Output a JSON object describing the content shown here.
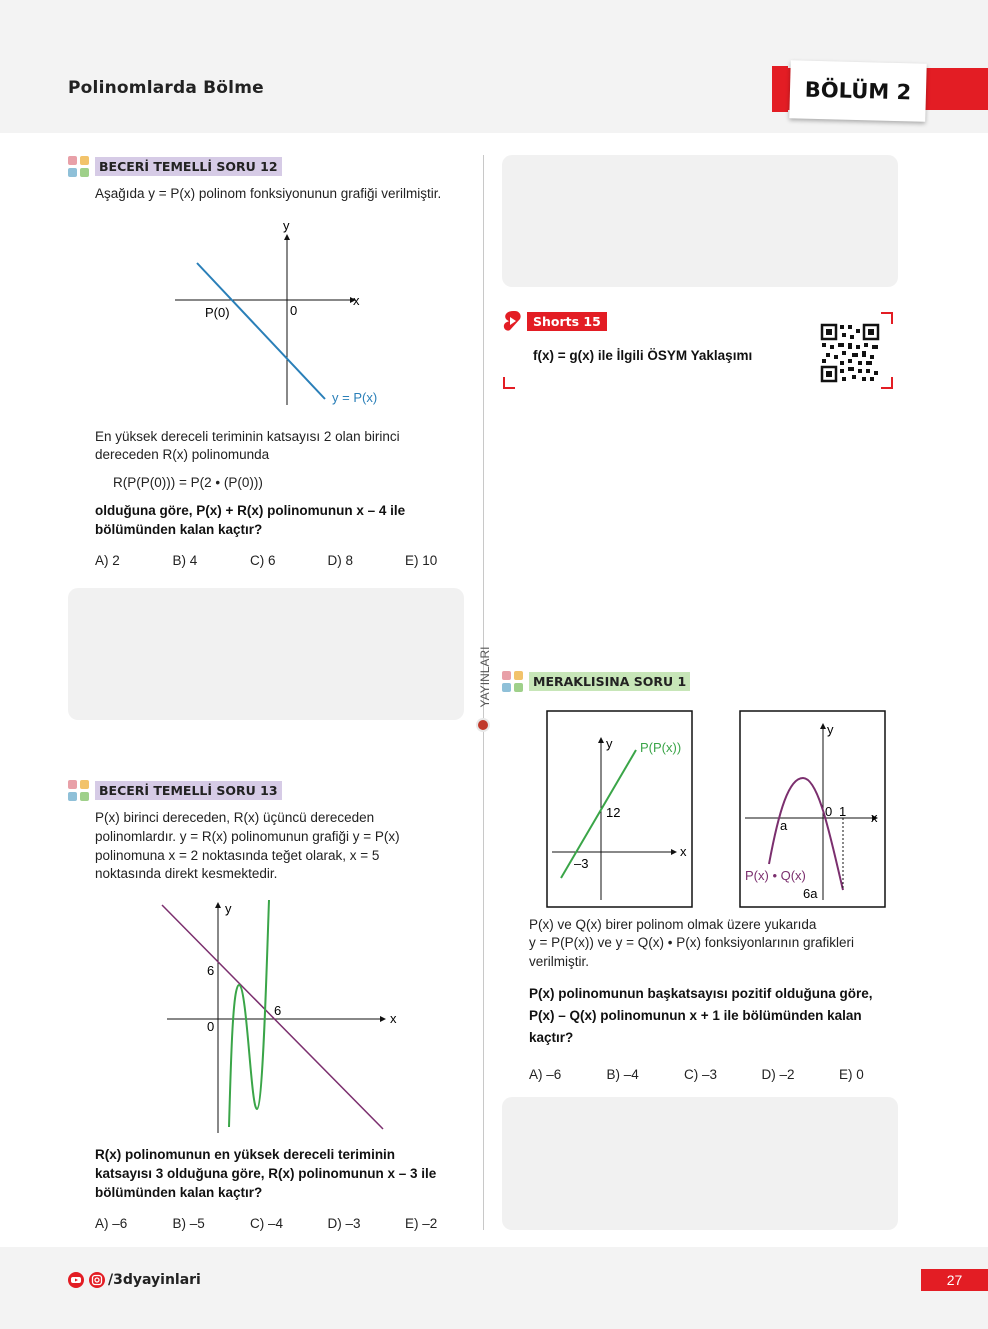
{
  "header": {
    "title": "Polinomlarda Bölme",
    "chapter": "BÖLÜM 2"
  },
  "side": {
    "publisher": "YAYINLARI"
  },
  "q12": {
    "tag": "BECERİ TEMELLİ SORU 12",
    "intro": "Aşağıda y = P(x) polinom fonksiyonunun grafiği verilmiştir.",
    "graph": {
      "y_label": "y",
      "x_label": "x",
      "p0_label": "P(0)",
      "origin_label": "0",
      "curve_label": "y = P(x)"
    },
    "line1": "En yüksek dereceli teriminin katsayısı 2 olan birinci",
    "line2": "dereceden R(x) polinomunda",
    "equation": "R(P(P(0))) = P(2 • (P(0)))",
    "bold1": "olduğuna göre, P(x) + R(x) polinomunun x – 4 ile",
    "bold2": "bölümünden kalan kaçtır?",
    "choices": [
      "A) 2",
      "B) 4",
      "C) 6",
      "D) 8",
      "E) 10"
    ]
  },
  "q13": {
    "tag": "BECERİ TEMELLİ SORU 13",
    "l1": "P(x) birinci dereceden, R(x) üçüncü dereceden",
    "l2": "polinomlardır. y = R(x) polinomunun grafiği y = P(x)",
    "l3": "polinomuna x = 2 noktasında teğet olarak, x = 5",
    "l4": "noktasında direkt kesmektedir.",
    "graph": {
      "y_label": "y",
      "x_label": "x",
      "six_y": "6",
      "origin": "0",
      "six_x": "6"
    },
    "b1": "R(x) polinomunun en yüksek dereceli teriminin",
    "b2": "katsayısı 3 olduğuna göre, R(x) polinomunun x – 3 ile",
    "b3": "bölümünden kalan kaçtır?",
    "choices": [
      "A) –6",
      "B) –5",
      "C) –4",
      "D) –3",
      "E) –2"
    ]
  },
  "shorts": {
    "tag": "Shorts 15",
    "title": "f(x) = g(x) ile İlgili ÖSYM Yaklaşımı"
  },
  "merak": {
    "tag": "MERAKLISINA SORU 1",
    "g1": {
      "y": "y",
      "x": "x",
      "label": "P(P(x))",
      "twelve": "12",
      "minus3": "–3"
    },
    "g2": {
      "y": "y",
      "x": "x",
      "a": "a",
      "zero": "0",
      "one": "1",
      "label": "P(x) • Q(x)",
      "six_a": "6a"
    },
    "l1": "P(x) ve Q(x) birer polinom olmak üzere yukarıda",
    "l2": "y = P(P(x)) ve y = Q(x) • P(x) fonksiyonlarının grafikleri",
    "l3": "verilmiştir.",
    "b1": "P(x) polinomunun başkatsayısı pozitif olduğuna göre,",
    "b2": "P(x) – Q(x) polinomunun x + 1 ile bölümünden kalan",
    "b3": "kaçtır?",
    "choices": [
      "A) –6",
      "B) –4",
      "C) –3",
      "D) –2",
      "E) 0"
    ]
  },
  "footer": {
    "handle": "/3dyayinlari",
    "page": "27"
  },
  "colors": {
    "accent": "#e31d24",
    "tag_purple": "#d6cbe6",
    "tag_green": "#c7e6b8",
    "line_blue": "#2a7fb8",
    "line_green": "#3aa548",
    "line_purple": "#7b2f6e"
  }
}
